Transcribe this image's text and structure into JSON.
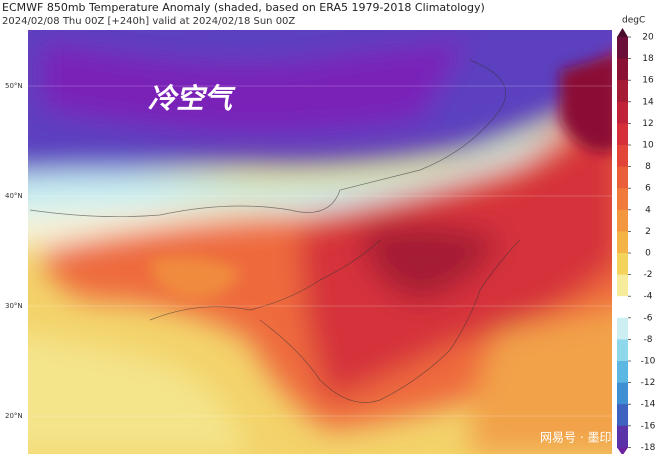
{
  "header": {
    "title": "ECMWF 850mb Temperature Anomaly (shaded, based on ERA5 1979-2018 Climatology)",
    "subtitle": "2024/02/08 Thu 00Z [+240h] valid at 2024/02/18 Sun 00Z"
  },
  "map": {
    "annotation": "冷空气",
    "latitude_labels": [
      "50°N",
      "40°N",
      "30°N",
      "20°N"
    ]
  },
  "colorbar": {
    "unit": "degC",
    "ticks": [
      20,
      18,
      16,
      14,
      12,
      10,
      8,
      6,
      4,
      2,
      0,
      -2,
      -4,
      -6,
      -8,
      -10,
      -12,
      -14,
      -16,
      -18
    ]
  },
  "watermark": "网易号 · 墨印斋"
}
